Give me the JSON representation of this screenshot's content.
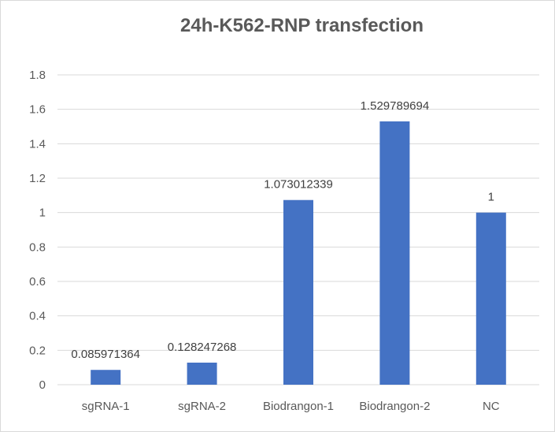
{
  "chart_data": {
    "type": "bar",
    "title": "24h-K562-RNP transfection",
    "categories": [
      "sgRNA-1",
      "sgRNA-2",
      "Biodrangon-1",
      "Biodrangon-2",
      "NC"
    ],
    "values": [
      0.085971364,
      0.128247268,
      1.073012339,
      1.529789694,
      1
    ],
    "data_labels": [
      "0.085971364",
      "0.128247268",
      "1.073012339",
      "1.529789694",
      "1"
    ],
    "xlabel": "",
    "ylabel": "",
    "ylim": [
      0,
      1.8
    ],
    "yticks": [
      "0",
      "0.2",
      "0.4",
      "0.6",
      "0.8",
      "1",
      "1.2",
      "1.4",
      "1.6",
      "1.8"
    ],
    "grid": true,
    "bar_color": "#4472c4"
  }
}
